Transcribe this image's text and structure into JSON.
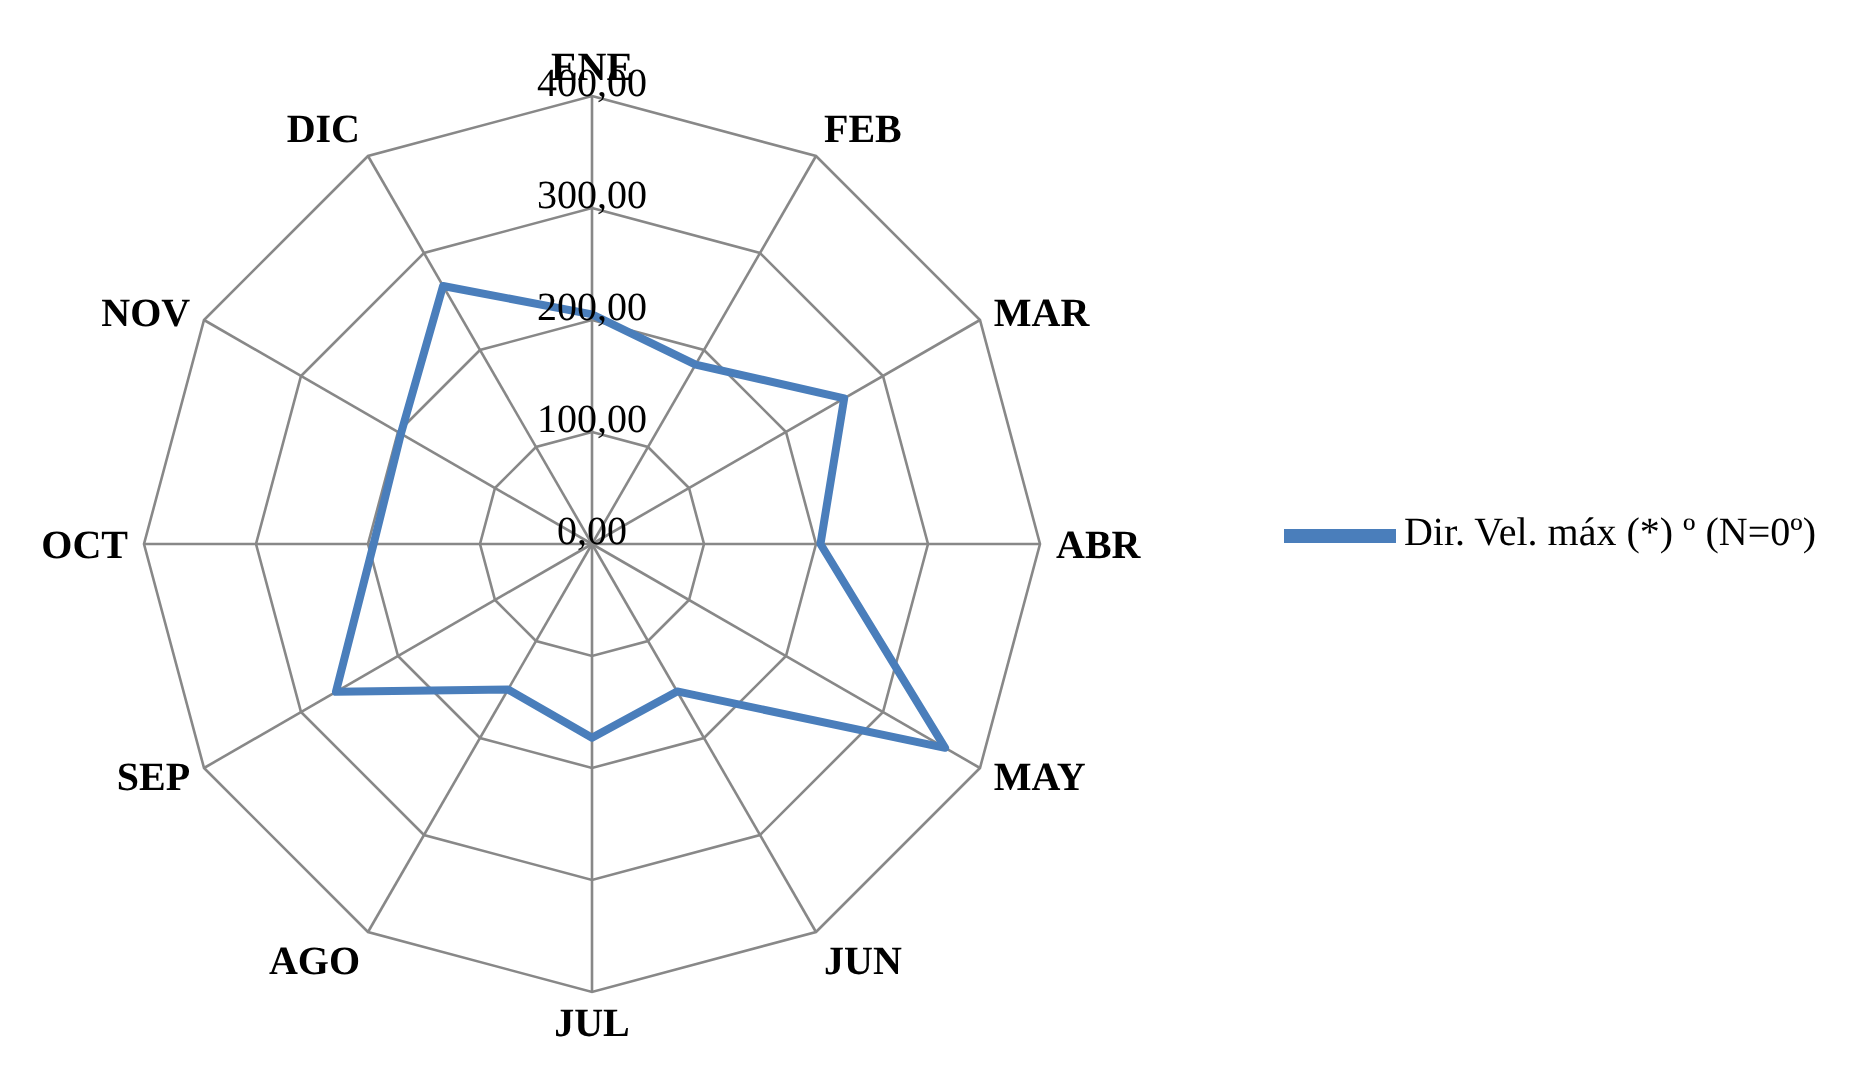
{
  "chart_data": {
    "type": "radar",
    "categories": [
      "ENE",
      "FEB",
      "MAR",
      "ABR",
      "MAY",
      "JUN",
      "JUL",
      "AGO",
      "SEP",
      "OCT",
      "NOV",
      "DIC"
    ],
    "series": [
      {
        "name": "Dir. Vel. máx (*) º (N=0º)",
        "color": "#4a7ebb",
        "values": [
          205,
          185,
          260,
          204,
          364,
          152,
          173,
          150,
          264,
          195,
          197,
          266
        ]
      }
    ],
    "ylim": [
      0,
      400
    ],
    "yticks": [
      {
        "value": 0,
        "label": "0,00"
      },
      {
        "value": 100,
        "label": "100,00"
      },
      {
        "value": 200,
        "label": "200,00"
      },
      {
        "value": 300,
        "label": "300,00"
      },
      {
        "value": 400,
        "label": "400,00"
      }
    ],
    "grid": true,
    "legend": "right",
    "marker": "none",
    "line_style": "solid"
  }
}
